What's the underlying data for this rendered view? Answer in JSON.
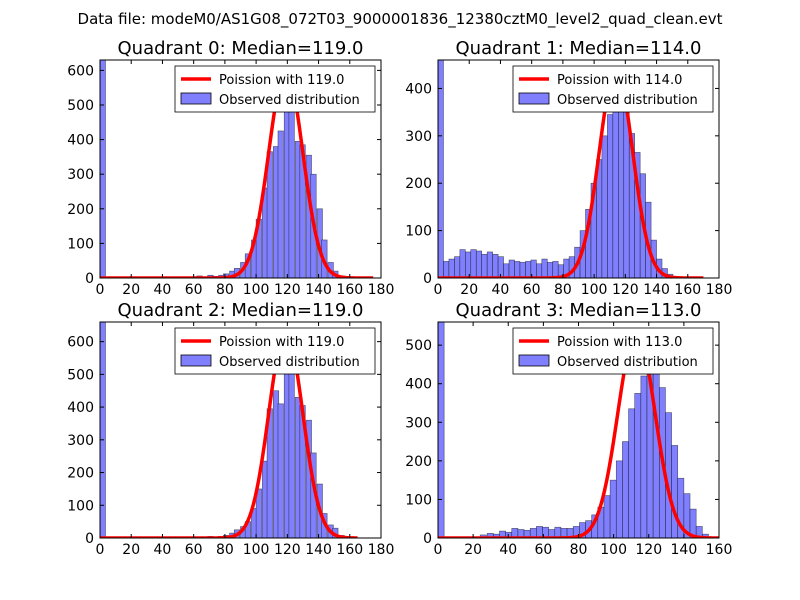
{
  "suptitle": "Data file: modeM0/AS1G08_072T03_9000001836_12380cztM0_level2_quad_clean.evt",
  "colors": {
    "curve": "#ff0000",
    "bars": "#8080ff",
    "bar_edge": "#000000",
    "frame": "#000000",
    "legend_edge": "#000000",
    "background": "#ffffff"
  },
  "chart_data": [
    {
      "type": "bar",
      "title": "Quadrant 0: Median=119.0",
      "xlim": [
        0,
        180
      ],
      "ylim": [
        0,
        630
      ],
      "xticks": [
        0,
        20,
        40,
        60,
        80,
        100,
        120,
        140,
        160,
        180
      ],
      "yticks": [
        0,
        100,
        200,
        300,
        400,
        500,
        600
      ],
      "legend": {
        "placement": "top-right",
        "curve_label": "Poission with 119.0",
        "bar_label": "Observed distribution"
      },
      "bin_width": 3.5,
      "bins": [
        [
          0,
          1000
        ],
        [
          62,
          6
        ],
        [
          65,
          3
        ],
        [
          69,
          8
        ],
        [
          72,
          5
        ],
        [
          76,
          8
        ],
        [
          79,
          12
        ],
        [
          83,
          20
        ],
        [
          86,
          28
        ],
        [
          90,
          45
        ],
        [
          93,
          70
        ],
        [
          97,
          110
        ],
        [
          100,
          170
        ],
        [
          104,
          260
        ],
        [
          107,
          365
        ],
        [
          111,
          380
        ],
        [
          114,
          425
        ],
        [
          118,
          540
        ],
        [
          121,
          595
        ],
        [
          125,
          395
        ],
        [
          128,
          385
        ],
        [
          132,
          355
        ],
        [
          135,
          300
        ],
        [
          139,
          200
        ],
        [
          142,
          110
        ],
        [
          146,
          45
        ],
        [
          149,
          20
        ],
        [
          153,
          6
        ],
        [
          156,
          2
        ]
      ],
      "curve": {
        "mean": 119.0,
        "peak": 600,
        "sigma": 10.9,
        "x_range": [
          0,
          175
        ]
      }
    },
    {
      "type": "bar",
      "title": "Quadrant 1: Median=114.0",
      "xlim": [
        0,
        180
      ],
      "ylim": [
        0,
        460
      ],
      "xticks": [
        0,
        20,
        40,
        60,
        80,
        100,
        120,
        140,
        160,
        180
      ],
      "yticks": [
        0,
        100,
        200,
        300,
        400
      ],
      "legend": {
        "placement": "top-right",
        "curve_label": "Poission with 114.0",
        "bar_label": "Observed distribution"
      },
      "bin_width": 3.5,
      "bins": [
        [
          0,
          1000
        ],
        [
          3.5,
          35
        ],
        [
          7,
          40
        ],
        [
          10.5,
          45
        ],
        [
          14,
          60
        ],
        [
          17.5,
          55
        ],
        [
          21,
          60
        ],
        [
          24.5,
          57
        ],
        [
          28,
          50
        ],
        [
          31.5,
          55
        ],
        [
          35,
          50
        ],
        [
          38.5,
          45
        ],
        [
          42,
          30
        ],
        [
          45.5,
          38
        ],
        [
          49,
          35
        ],
        [
          52.5,
          33
        ],
        [
          56,
          35
        ],
        [
          59.5,
          38
        ],
        [
          63,
          30
        ],
        [
          66.5,
          40
        ],
        [
          70,
          33
        ],
        [
          73.5,
          35
        ],
        [
          77,
          28
        ],
        [
          80.5,
          40
        ],
        [
          84,
          45
        ],
        [
          87.5,
          65
        ],
        [
          91,
          100
        ],
        [
          94.5,
          145
        ],
        [
          98,
          200
        ],
        [
          101.5,
          250
        ],
        [
          105,
          300
        ],
        [
          108.5,
          345
        ],
        [
          112,
          350
        ],
        [
          115.5,
          425
        ],
        [
          119,
          350
        ],
        [
          122.5,
          305
        ],
        [
          126,
          265
        ],
        [
          129.5,
          220
        ],
        [
          133,
          160
        ],
        [
          136.5,
          80
        ],
        [
          140,
          40
        ],
        [
          143.5,
          20
        ],
        [
          147,
          8
        ],
        [
          150.5,
          3
        ]
      ],
      "curve": {
        "mean": 114.0,
        "peak": 440,
        "sigma": 10.7,
        "x_range": [
          0,
          170
        ]
      }
    },
    {
      "type": "bar",
      "title": "Quadrant 2: Median=119.0",
      "xlim": [
        0,
        180
      ],
      "ylim": [
        0,
        660
      ],
      "xticks": [
        0,
        20,
        40,
        60,
        80,
        100,
        120,
        140,
        160,
        180
      ],
      "yticks": [
        0,
        100,
        200,
        300,
        400,
        500,
        600
      ],
      "legend": {
        "placement": "top-right",
        "curve_label": "Poission with 119.0",
        "bar_label": "Observed distribution"
      },
      "bin_width": 3.5,
      "bins": [
        [
          0,
          1000
        ],
        [
          69,
          5
        ],
        [
          76,
          5
        ],
        [
          79,
          8
        ],
        [
          83,
          15
        ],
        [
          86,
          25
        ],
        [
          90,
          35
        ],
        [
          93,
          50
        ],
        [
          97,
          90
        ],
        [
          100,
          150
        ],
        [
          104,
          235
        ],
        [
          107,
          395
        ],
        [
          111,
          450
        ],
        [
          114,
          410
        ],
        [
          118,
          590
        ],
        [
          121,
          565
        ],
        [
          125,
          430
        ],
        [
          128,
          405
        ],
        [
          132,
          360
        ],
        [
          135,
          260
        ],
        [
          139,
          165
        ],
        [
          142,
          75
        ],
        [
          146,
          40
        ],
        [
          149,
          30
        ],
        [
          153,
          8
        ],
        [
          156,
          3
        ]
      ],
      "curve": {
        "mean": 119.0,
        "peak": 630,
        "sigma": 10.9,
        "x_range": [
          0,
          165
        ]
      }
    },
    {
      "type": "bar",
      "title": "Quadrant 3: Median=113.0",
      "xlim": [
        0,
        160
      ],
      "ylim": [
        0,
        560
      ],
      "xticks": [
        0,
        20,
        40,
        60,
        80,
        100,
        120,
        140,
        160
      ],
      "yticks": [
        0,
        100,
        200,
        300,
        400,
        500
      ],
      "legend": {
        "placement": "top-right",
        "curve_label": "Poission with 113.0",
        "bar_label": "Observed distribution"
      },
      "bin_width": 3.5,
      "bins": [
        [
          0,
          1000
        ],
        [
          24,
          8
        ],
        [
          28,
          12
        ],
        [
          31.5,
          10
        ],
        [
          35,
          18
        ],
        [
          38.5,
          15
        ],
        [
          42,
          25
        ],
        [
          45.5,
          22
        ],
        [
          49,
          20
        ],
        [
          52.5,
          25
        ],
        [
          56,
          30
        ],
        [
          59.5,
          28
        ],
        [
          63,
          22
        ],
        [
          66.5,
          28
        ],
        [
          70,
          25
        ],
        [
          73.5,
          25
        ],
        [
          77,
          30
        ],
        [
          80.5,
          40
        ],
        [
          84,
          45
        ],
        [
          87.5,
          60
        ],
        [
          91,
          80
        ],
        [
          94.5,
          110
        ],
        [
          98,
          150
        ],
        [
          101.5,
          200
        ],
        [
          105,
          250
        ],
        [
          108.5,
          335
        ],
        [
          112,
          375
        ],
        [
          115.5,
          420
        ],
        [
          119,
          465
        ],
        [
          122.5,
          510
        ],
        [
          126,
          390
        ],
        [
          129.5,
          325
        ],
        [
          133,
          240
        ],
        [
          136.5,
          155
        ],
        [
          140,
          115
        ],
        [
          143.5,
          75
        ],
        [
          147,
          30
        ],
        [
          150.5,
          10
        ]
      ],
      "curve": {
        "mean": 113.0,
        "peak": 535,
        "sigma": 10.6,
        "x_range": [
          0,
          160
        ]
      }
    }
  ]
}
